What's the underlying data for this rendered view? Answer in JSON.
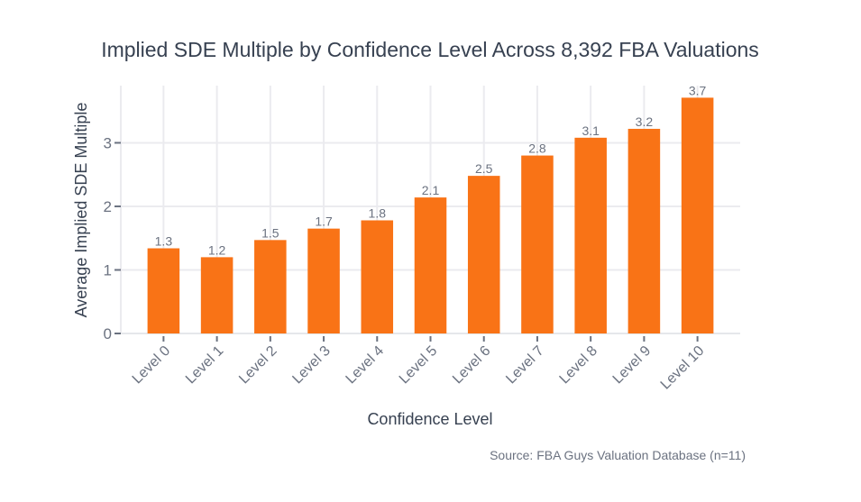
{
  "chart_data": {
    "type": "bar",
    "title": "Implied SDE Multiple by Confidence Level Across 8,392 FBA Valuations",
    "xlabel": "Confidence Level",
    "ylabel": "Average Implied SDE Multiple",
    "categories": [
      "Level 0",
      "Level 1",
      "Level 2",
      "Level 3",
      "Level 4",
      "Level 5",
      "Level 6",
      "Level 7",
      "Level 8",
      "Level 9",
      "Level 10"
    ],
    "values": [
      1.34,
      1.2,
      1.47,
      1.65,
      1.78,
      2.14,
      2.48,
      2.8,
      3.08,
      3.22,
      3.71
    ],
    "data_labels": [
      "1.3",
      "1.2",
      "1.5",
      "1.7",
      "1.8",
      "2.1",
      "2.5",
      "2.8",
      "3.1",
      "3.2",
      "3.7"
    ],
    "yticks": [
      "0",
      "1",
      "2",
      "3"
    ],
    "ylim": [
      0,
      3.9
    ],
    "grid": true,
    "bar_color": "#f97316",
    "annotation": "Source: FBA Guys Valuation Database (n=11)"
  }
}
